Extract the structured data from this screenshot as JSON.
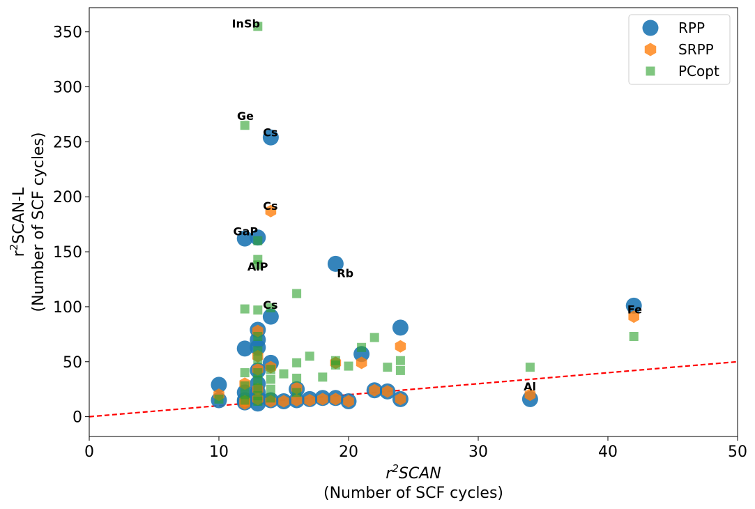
{
  "chart_data": {
    "type": "scatter",
    "xlabel": "r²SCAN",
    "xlabel_sub": "(Number of SCF cycles)",
    "ylabel": "r²SCAN-L",
    "ylabel_sub": "(Number of SCF cycles)",
    "xlim": [
      0,
      50
    ],
    "ylim": [
      -18,
      372
    ],
    "xticks": [
      0,
      10,
      20,
      30,
      40,
      50
    ],
    "yticks": [
      0,
      50,
      100,
      150,
      200,
      250,
      300,
      350
    ],
    "grid": false,
    "legend_position": "top-right",
    "reference_line": {
      "x": [
        0,
        50
      ],
      "y": [
        0,
        50
      ],
      "color": "#ff0000",
      "style": "dashed"
    },
    "series": [
      {
        "name": "RPP",
        "marker": "circle",
        "color": "#1f77b4",
        "points": [
          [
            10,
            29
          ],
          [
            10,
            15
          ],
          [
            12,
            62
          ],
          [
            12,
            162
          ],
          [
            12,
            22
          ],
          [
            12,
            15
          ],
          [
            12,
            13
          ],
          [
            13,
            163
          ],
          [
            13,
            79
          ],
          [
            13,
            70
          ],
          [
            13,
            63
          ],
          [
            13,
            42
          ],
          [
            13,
            30
          ],
          [
            13,
            22
          ],
          [
            13,
            17
          ],
          [
            13,
            12
          ],
          [
            14,
            254
          ],
          [
            14,
            91
          ],
          [
            14,
            49
          ],
          [
            14,
            15
          ],
          [
            15,
            14
          ],
          [
            16,
            25
          ],
          [
            16,
            15
          ],
          [
            17,
            16
          ],
          [
            18,
            17
          ],
          [
            19,
            139
          ],
          [
            19,
            17
          ],
          [
            20,
            14
          ],
          [
            21,
            57
          ],
          [
            22,
            24
          ],
          [
            23,
            23
          ],
          [
            24,
            81
          ],
          [
            24,
            16
          ],
          [
            34,
            16
          ],
          [
            42,
            101
          ]
        ]
      },
      {
        "name": "SRPP",
        "marker": "hexagon",
        "color": "#ff7f0e",
        "points": [
          [
            10,
            20
          ],
          [
            12,
            30
          ],
          [
            12,
            14
          ],
          [
            12,
            12
          ],
          [
            13,
            78
          ],
          [
            13,
            55
          ],
          [
            13,
            43
          ],
          [
            13,
            25
          ],
          [
            13,
            16
          ],
          [
            14,
            187
          ],
          [
            14,
            45
          ],
          [
            14,
            14
          ],
          [
            15,
            14
          ],
          [
            16,
            26
          ],
          [
            16,
            15
          ],
          [
            17,
            15
          ],
          [
            18,
            16
          ],
          [
            19,
            49
          ],
          [
            19,
            16
          ],
          [
            20,
            14
          ],
          [
            21,
            49
          ],
          [
            22,
            24
          ],
          [
            23,
            23
          ],
          [
            24,
            64
          ],
          [
            24,
            16
          ],
          [
            34,
            20
          ],
          [
            42,
            91
          ]
        ]
      },
      {
        "name": "PCopt",
        "marker": "square",
        "color": "#2ca02c",
        "points": [
          [
            10,
            16
          ],
          [
            12,
            98
          ],
          [
            12,
            40
          ],
          [
            12,
            265
          ],
          [
            12,
            28
          ],
          [
            12,
            20
          ],
          [
            12,
            15
          ],
          [
            13,
            355
          ],
          [
            13,
            160
          ],
          [
            13,
            143
          ],
          [
            13,
            138
          ],
          [
            13,
            97
          ],
          [
            13,
            73
          ],
          [
            13,
            60
          ],
          [
            13,
            52
          ],
          [
            13,
            40
          ],
          [
            13,
            33
          ],
          [
            13,
            26
          ],
          [
            13,
            19
          ],
          [
            13,
            14
          ],
          [
            14,
            99
          ],
          [
            14,
            43
          ],
          [
            14,
            34
          ],
          [
            14,
            25
          ],
          [
            14,
            17
          ],
          [
            15,
            39
          ],
          [
            16,
            112
          ],
          [
            16,
            49
          ],
          [
            16,
            35
          ],
          [
            16,
            22
          ],
          [
            17,
            55
          ],
          [
            18,
            36
          ],
          [
            19,
            51
          ],
          [
            19,
            47
          ],
          [
            20,
            46
          ],
          [
            21,
            63
          ],
          [
            22,
            72
          ],
          [
            23,
            45
          ],
          [
            24,
            51
          ],
          [
            24,
            42
          ],
          [
            34,
            45
          ],
          [
            42,
            73
          ]
        ]
      }
    ],
    "annotations": [
      {
        "text": "InSb",
        "x": 11.0,
        "y": 354
      },
      {
        "text": "Ge",
        "x": 11.4,
        "y": 270
      },
      {
        "text": "Cs",
        "x": 13.4,
        "y": 255
      },
      {
        "text": "Cs",
        "x": 13.4,
        "y": 188
      },
      {
        "text": "GaP",
        "x": 11.1,
        "y": 165
      },
      {
        "text": "AlP",
        "x": 12.2,
        "y": 133
      },
      {
        "text": "Rb",
        "x": 19.1,
        "y": 127
      },
      {
        "text": "Cs",
        "x": 13.4,
        "y": 98
      },
      {
        "text": "Fe",
        "x": 41.5,
        "y": 94
      },
      {
        "text": "Al",
        "x": 33.5,
        "y": 24
      }
    ]
  }
}
